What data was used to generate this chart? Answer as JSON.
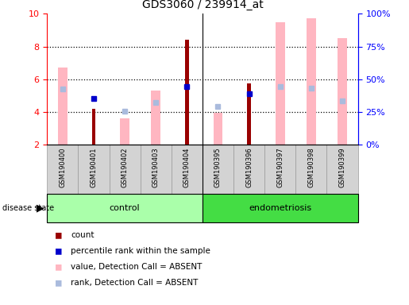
{
  "title": "GDS3060 / 239914_at",
  "samples": [
    "GSM190400",
    "GSM190401",
    "GSM190402",
    "GSM190403",
    "GSM190404",
    "GSM190395",
    "GSM190396",
    "GSM190397",
    "GSM190398",
    "GSM190399"
  ],
  "groups": [
    "control",
    "control",
    "control",
    "control",
    "control",
    "endometriosis",
    "endometriosis",
    "endometriosis",
    "endometriosis",
    "endometriosis"
  ],
  "ylim": [
    2,
    10
  ],
  "ylim_right": [
    0,
    100
  ],
  "yticks_left": [
    2,
    4,
    6,
    8,
    10
  ],
  "yticks_right": [
    0,
    25,
    50,
    75,
    100
  ],
  "pink_bar_values": [
    6.7,
    null,
    3.6,
    5.3,
    null,
    3.95,
    null,
    9.5,
    9.7,
    8.5
  ],
  "dark_red_bar_values": [
    null,
    4.2,
    null,
    null,
    8.4,
    null,
    5.75,
    null,
    null,
    null
  ],
  "blue_square_values": [
    null,
    4.85,
    null,
    null,
    5.55,
    null,
    5.1,
    null,
    null,
    null
  ],
  "light_blue_square_values": [
    5.4,
    null,
    4.05,
    4.6,
    null,
    4.35,
    null,
    5.55,
    5.45,
    4.7
  ],
  "colors": {
    "pink_bar": "#FFB6C1",
    "dark_red_bar": "#990000",
    "blue_square": "#0000CC",
    "light_blue_square": "#AABBDD",
    "control_bg": "#AAFFAA",
    "endometriosis_bg": "#44DD44",
    "grid_color": "#000000"
  },
  "legend": [
    {
      "label": "count",
      "color": "#990000"
    },
    {
      "label": "percentile rank within the sample",
      "color": "#0000CC"
    },
    {
      "label": "value, Detection Call = ABSENT",
      "color": "#FFB6C1"
    },
    {
      "label": "rank, Detection Call = ABSENT",
      "color": "#AABBDD"
    }
  ],
  "control_sep": 4.5,
  "n_control": 5,
  "n_total": 10,
  "pink_bar_width": 0.3,
  "dark_red_bar_width": 0.12
}
